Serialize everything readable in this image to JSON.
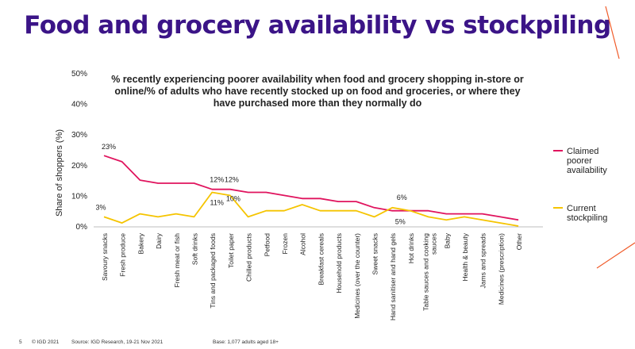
{
  "page": {
    "slide_number": "5",
    "copyright": "© IGD 2021",
    "source": "Source: IGD Research, 19-21 Nov 2021",
    "base": "Base: 1,077 adults aged 18+"
  },
  "colors": {
    "title": "#3b1487",
    "claimed": "#e0145e",
    "stockpiling": "#f5c400",
    "accent": "#f05a28"
  },
  "chart_data": {
    "type": "line",
    "title": "Food and grocery availability vs stockpiling",
    "subtitle": "% recently experiencing poorer availability when food and grocery shopping in-store or online/% of adults who have recently stocked up on food and groceries, or where they have purchased more than they normally do",
    "ylabel": "Share of shoppers (%)",
    "ylim": [
      0,
      50
    ],
    "yticks": [
      0,
      10,
      20,
      30,
      40,
      50
    ],
    "ytick_labels": [
      "0%",
      "10%",
      "20%",
      "30%",
      "40%",
      "50%"
    ],
    "grid": false,
    "legend_position": "right",
    "categories": [
      "Savoury snacks",
      "Fresh produce",
      "Bakery",
      "Dairy",
      "Fresh meat or fish",
      "Soft drinks",
      "Tins and packaged foods",
      "Toilet paper",
      "Chilled products",
      "Petfood",
      "Frozen",
      "Alcohol",
      "Breakfast cereals",
      "Household products",
      "Medicines (over the counter)",
      "Sweet snacks",
      "Hand sanitiser and hand gels",
      "Hot drinks",
      "Table sauces and cooking sauces",
      "Baby",
      "Health & beauty",
      "Jams and spreads",
      "Medicines (prescription)",
      "Other"
    ],
    "series": [
      {
        "name": "Claimed poorer availability",
        "color": "#e0145e",
        "values": [
          23,
          21,
          15,
          14,
          14,
          14,
          12,
          12,
          11,
          11,
          10,
          9,
          9,
          8,
          8,
          6,
          5,
          5,
          5,
          4,
          4,
          4,
          3,
          2
        ]
      },
      {
        "name": "Current stockpiling",
        "color": "#f5c400",
        "values": [
          3,
          1,
          4,
          3,
          4,
          3,
          11,
          10,
          3,
          5,
          5,
          7,
          5,
          5,
          5,
          3,
          6,
          5,
          3,
          2,
          3,
          2,
          1,
          0
        ]
      }
    ],
    "annotations": [
      {
        "series": 0,
        "index": 0,
        "label": "23%"
      },
      {
        "series": 1,
        "index": 0,
        "label": "3%"
      },
      {
        "series": 0,
        "index": 6,
        "label": "12%"
      },
      {
        "series": 1,
        "index": 6,
        "label": "11%"
      },
      {
        "series": 0,
        "index": 7,
        "label": "12%"
      },
      {
        "series": 1,
        "index": 7,
        "label": "10%"
      },
      {
        "series": 1,
        "index": 16,
        "label": "6%"
      },
      {
        "series": 0,
        "index": 16,
        "label": "5%"
      }
    ]
  }
}
